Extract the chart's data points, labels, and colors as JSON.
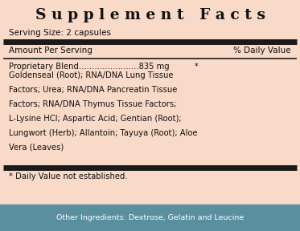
{
  "bg_color": "#f9d9c8",
  "bottom_bar_color": "#5a8fa0",
  "title": "S u p p l e m e n t   F a c t s",
  "serving_size": "Serving Size: 2 capsules",
  "col1_header": "Amount Per Serving",
  "col2_header": "% Daily Value",
  "proprietary_line": "Proprietary Blend.......................835 mg          *",
  "ingredient_lines": [
    "Goldenseal (Root); RNA/DNA Lung Tissue",
    "Factors; Urea; RNA/DNA Pancreatin Tissue",
    "Factors; RNA/DNA Thymus Tissue Factors;",
    "L-Lysine HCl; Aspartic Acid; Gentian (Root);",
    "Lungwort (Herb); Allantoin; Tayuya (Root); Aloe",
    "Vera (Leaves)"
  ],
  "footnote": "* Daily Value not established.",
  "other_ingredients": "Other Ingredients: Dextrose, Gelatin and Leucine",
  "thick_bar_color": "#1a1a1a",
  "thin_bar_color": "#1a1a1a"
}
